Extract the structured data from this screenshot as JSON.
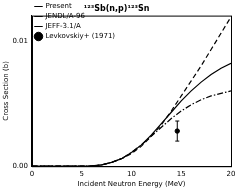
{
  "chart_data": {
    "type": "line",
    "title": "¹²³Sb(n,p)¹²³Sn",
    "x_label": "Incident Neutron Energy (MeV)",
    "y_label": "Cross Section (b)",
    "xlim": [
      0,
      20
    ],
    "xticks": [
      0,
      5,
      10,
      15,
      20
    ],
    "ylim": [
      0,
      0.012
    ],
    "yticks": [
      {
        "value": 0,
        "label": "0.00"
      },
      0.01
    ],
    "grid": false,
    "legend": "upper left",
    "series": [
      {
        "name": "Present",
        "type": "line",
        "line_style": "solid",
        "color": "#000000",
        "x": [
          0,
          5,
          6,
          7,
          8,
          9,
          10,
          11,
          12,
          13,
          14,
          15,
          16,
          17,
          18,
          19,
          20
        ],
        "values": [
          0,
          0,
          2e-05,
          0.0001,
          0.0003,
          0.0006,
          0.0011,
          0.0017,
          0.0025,
          0.0034,
          0.0043,
          0.0052,
          0.006,
          0.0067,
          0.0073,
          0.0078,
          0.0082
        ]
      },
      {
        "name": "JENDL/A-96",
        "type": "line",
        "line_style": "dashed",
        "color": "#000000",
        "x": [
          0,
          5,
          6,
          7,
          8,
          9,
          10,
          11,
          12,
          13,
          14,
          15,
          16,
          17,
          18,
          19,
          20
        ],
        "values": [
          0,
          0,
          2e-05,
          0.0001,
          0.0003,
          0.0006,
          0.001,
          0.0016,
          0.0024,
          0.0033,
          0.0044,
          0.0056,
          0.0068,
          0.008,
          0.0093,
          0.0106,
          0.0119
        ]
      },
      {
        "name": "JEFF-3.1/A",
        "type": "line",
        "line_style": "dashdot",
        "color": "#000000",
        "x": [
          0,
          5,
          6,
          7,
          8,
          9,
          10,
          11,
          12,
          13,
          14,
          15,
          16,
          17,
          18,
          19,
          20
        ],
        "values": [
          0,
          0,
          3e-05,
          0.0001,
          0.0003,
          0.0006,
          0.0011,
          0.0017,
          0.0024,
          0.0031,
          0.0038,
          0.0044,
          0.0049,
          0.0053,
          0.0056,
          0.0058,
          0.006
        ]
      },
      {
        "name": "Levkovskiy+ (1971)",
        "type": "scatter",
        "marker": "circle",
        "color": "#000000",
        "x": [
          14.6
        ],
        "values": [
          0.0028
        ],
        "errors": [
          0.0008
        ]
      }
    ]
  }
}
